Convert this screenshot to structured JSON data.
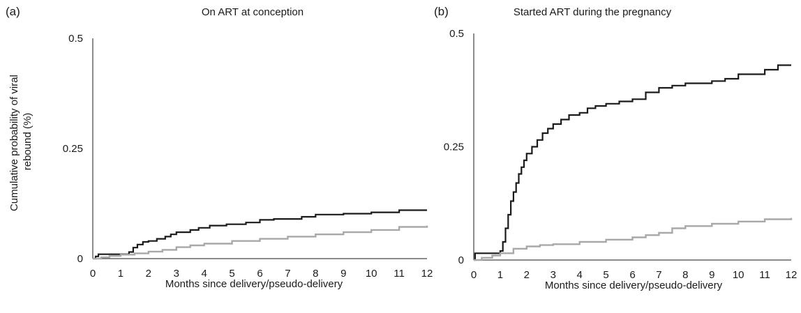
{
  "chart_data": [
    {
      "type": "line",
      "panel_label": "(a)",
      "title": "On ART at conception",
      "xlabel": "Months since delivery/pseudo-delivery",
      "ylabel": "Cumulative probability of viral rebound (%)",
      "ylabel_lines": [
        "Cumulative probability of viral",
        "rebound (%)"
      ],
      "xlim": [
        0,
        12
      ],
      "ylim": [
        0,
        0.5
      ],
      "x_ticks": [
        "0",
        "1",
        "2",
        "3",
        "4",
        "5",
        "6",
        "7",
        "8",
        "9",
        "10",
        "11",
        "12"
      ],
      "y_ticks": [
        "0",
        "0.25",
        "0.5"
      ],
      "grid": false,
      "series": [
        {
          "color": "#1a1a1a",
          "step": true,
          "x": [
            0,
            0.1,
            0.2,
            0.5,
            1.0,
            1.3,
            1.45,
            1.6,
            1.8,
            2.0,
            2.3,
            2.6,
            2.8,
            3.0,
            3.5,
            3.8,
            4.2,
            4.8,
            5.5,
            6.0,
            6.5,
            7.5,
            8.0,
            9.0,
            10.0,
            11.0,
            12.0
          ],
          "values": [
            0,
            0.005,
            0.01,
            0.01,
            0.01,
            0.015,
            0.025,
            0.032,
            0.038,
            0.04,
            0.045,
            0.05,
            0.055,
            0.06,
            0.065,
            0.07,
            0.075,
            0.078,
            0.082,
            0.088,
            0.09,
            0.095,
            0.1,
            0.102,
            0.105,
            0.11,
            0.11
          ]
        },
        {
          "color": "#a8a8a8",
          "step": true,
          "x": [
            0,
            0.3,
            0.6,
            1.0,
            1.5,
            2.0,
            2.5,
            3.0,
            3.5,
            4.0,
            5.0,
            6.0,
            7.0,
            8.0,
            9.0,
            10.0,
            11.0,
            12.0
          ],
          "values": [
            0,
            0.003,
            0.006,
            0.009,
            0.012,
            0.016,
            0.02,
            0.026,
            0.03,
            0.034,
            0.04,
            0.045,
            0.05,
            0.055,
            0.06,
            0.065,
            0.072,
            0.075
          ]
        }
      ]
    },
    {
      "type": "line",
      "panel_label": "(b)",
      "title": "Started ART during the pregnancy",
      "xlabel": "Months since delivery/pseudo-delivery",
      "ylabel": "",
      "xlim": [
        0,
        12
      ],
      "ylim": [
        0,
        0.5
      ],
      "x_ticks": [
        "0",
        "1",
        "2",
        "3",
        "4",
        "5",
        "6",
        "7",
        "8",
        "9",
        "10",
        "11",
        "12"
      ],
      "y_ticks": [
        "0",
        "0.25",
        "0.5"
      ],
      "grid": false,
      "series": [
        {
          "color": "#1a1a1a",
          "step": true,
          "x": [
            0,
            0.05,
            0.9,
            1.0,
            1.1,
            1.2,
            1.3,
            1.4,
            1.5,
            1.6,
            1.7,
            1.8,
            1.9,
            2.0,
            2.2,
            2.4,
            2.6,
            2.8,
            3.0,
            3.3,
            3.6,
            4.0,
            4.3,
            4.6,
            5.0,
            5.5,
            6.0,
            6.5,
            7.0,
            7.5,
            8.0,
            9.0,
            9.5,
            10.0,
            11.0,
            11.5,
            12.0
          ],
          "values": [
            0,
            0.015,
            0.015,
            0.02,
            0.04,
            0.07,
            0.1,
            0.13,
            0.15,
            0.17,
            0.19,
            0.205,
            0.22,
            0.235,
            0.25,
            0.265,
            0.28,
            0.29,
            0.3,
            0.31,
            0.32,
            0.325,
            0.335,
            0.34,
            0.345,
            0.35,
            0.355,
            0.37,
            0.38,
            0.385,
            0.39,
            0.395,
            0.4,
            0.41,
            0.42,
            0.43,
            0.43
          ]
        },
        {
          "color": "#a8a8a8",
          "step": true,
          "x": [
            0,
            0.3,
            0.7,
            1.0,
            1.5,
            2.0,
            2.5,
            3.0,
            4.0,
            5.0,
            6.0,
            6.5,
            7.0,
            7.5,
            8.0,
            9.0,
            10.0,
            11.0,
            12.0
          ],
          "values": [
            0,
            0.005,
            0.01,
            0.015,
            0.025,
            0.03,
            0.033,
            0.035,
            0.04,
            0.045,
            0.05,
            0.055,
            0.06,
            0.07,
            0.075,
            0.08,
            0.085,
            0.09,
            0.093
          ]
        }
      ]
    }
  ]
}
